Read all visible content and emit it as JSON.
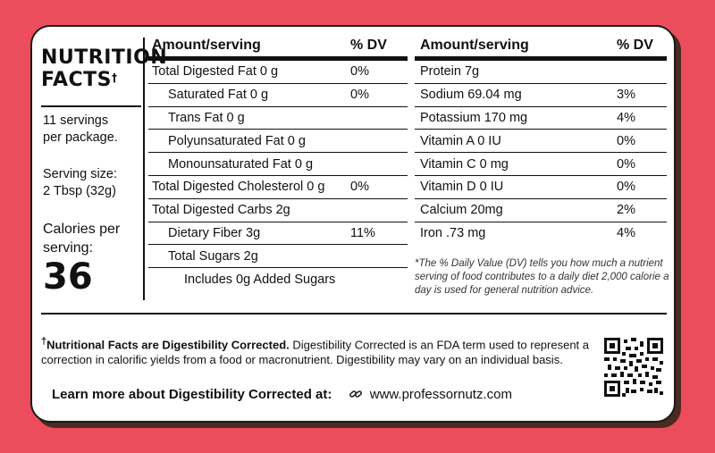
{
  "title": {
    "line1": "NUTRITION",
    "line2": "FACTS",
    "dagger": "†"
  },
  "servings": {
    "line1": "11 servings",
    "line2": "per package."
  },
  "serving_size": {
    "line1": "Serving size:",
    "line2": "2 Tbsp (32g)"
  },
  "calories": {
    "line1": "Calories per",
    "line2": "serving:",
    "value": "36"
  },
  "table_left": {
    "header": {
      "amount": "Amount/serving",
      "dv": "% DV"
    },
    "rows": [
      {
        "label": "Total Digested Fat 0 g",
        "dv": "0%"
      },
      {
        "label": "Saturated Fat 0 g",
        "dv": "0%"
      },
      {
        "label": "Trans Fat 0 g",
        "dv": ""
      },
      {
        "label": "Polyunsaturated Fat 0 g",
        "dv": ""
      },
      {
        "label": "Monounsaturated Fat 0 g",
        "dv": ""
      },
      {
        "label": "Total Digested Cholesterol 0 g",
        "dv": "0%"
      },
      {
        "label": "Total Digested Carbs  2g",
        "dv": ""
      },
      {
        "label": "Dietary Fiber 3g",
        "dv": "11%"
      },
      {
        "label": "Total Sugars  2g",
        "dv": ""
      },
      {
        "label": "Includes 0g Added Sugars",
        "dv": ""
      }
    ]
  },
  "table_right": {
    "header": {
      "amount": "Amount/serving",
      "dv": "% DV"
    },
    "rows": [
      {
        "label": "Protein 7g",
        "dv": ""
      },
      {
        "label": "Sodium 69.04  mg",
        "dv": "3%"
      },
      {
        "label": "Potassium  170 mg",
        "dv": "4%"
      },
      {
        "label": "Vitamin A 0 IU",
        "dv": "0%"
      },
      {
        "label": "Vitamin C 0 mg",
        "dv": "0%"
      },
      {
        "label": "Vitamin D 0 IU",
        "dv": "0%"
      },
      {
        "label": "Calcium 20mg",
        "dv": "2%"
      },
      {
        "label": "Iron  .73 mg",
        "dv": "4%"
      }
    ]
  },
  "footnote": "*The % Daily Value (DV) tells you how much a nutrient serving of food contributes to a daily diet 2,000 calorie a day is used for general nutrition advice.",
  "dagger_note": {
    "dagger": "†",
    "bold": "Nutritional Facts are Digestibility Corrected.",
    "text": " Digestibility Corrected is an FDA term used to represent a correction in calorific yields from a food or macronutrient. Digestibility may vary on an individual basis."
  },
  "learn_more": {
    "label": "Learn more about Digestibility Corrected at:",
    "url": "www.professornutz.com"
  },
  "colors": {
    "background": "#ec4d5c",
    "label": "#ffffff",
    "ink": "#111111",
    "shadow": "#4a2a22"
  },
  "icons": {
    "link": "link-icon",
    "qr": "qr-code-icon"
  }
}
